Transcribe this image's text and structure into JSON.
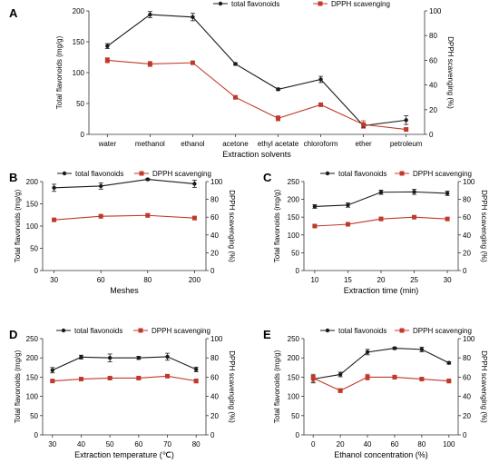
{
  "colors": {
    "flavonoids": "#1a1a1a",
    "dpph": "#c0392b"
  },
  "chart_data": [
    {
      "panel": "A",
      "type": "line",
      "xlabel": "Extraction solvents",
      "ylabel": "Total flavonoids (mg/g)",
      "y2label": "DPPH scavenging (%)",
      "categories": [
        "water",
        "methanol",
        "ethanol",
        "acetone",
        "ethyl acetate",
        "chloroform",
        "ether",
        "petroleum"
      ],
      "ylim": [
        0,
        200
      ],
      "yticks": [
        "0",
        "50",
        "100",
        "150",
        "200"
      ],
      "y2lim": [
        0,
        100
      ],
      "y2ticks": [
        "0",
        "20",
        "40",
        "60",
        "80",
        "100"
      ],
      "legend_position": "top",
      "series": [
        {
          "name": "total flavonoids",
          "axis": "left",
          "values": [
            143,
            194,
            190,
            114,
            73,
            89,
            14,
            23
          ],
          "errors": [
            4,
            5,
            6,
            2,
            2,
            5,
            3,
            7
          ]
        },
        {
          "name": "DPPH scavenging",
          "axis": "right",
          "values": [
            60,
            57,
            58,
            30,
            13,
            24,
            8,
            4
          ],
          "errors": [
            2,
            2,
            1,
            1,
            2,
            1,
            3,
            1
          ]
        }
      ]
    },
    {
      "panel": "B",
      "type": "line",
      "xlabel": "Meshes",
      "ylabel": "Total flavonoids (mg/g)",
      "y2label": "DPPH scavenging (%)",
      "categories": [
        "30",
        "60",
        "80",
        "200"
      ],
      "ylim": [
        0,
        200
      ],
      "yticks": [
        "0",
        "50",
        "100",
        "150",
        "200"
      ],
      "y2lim": [
        0,
        100
      ],
      "y2ticks": [
        "0",
        "20",
        "40",
        "60",
        "80",
        "100"
      ],
      "legend_position": "top",
      "series": [
        {
          "name": "total flavonoids",
          "axis": "left",
          "values": [
            186,
            190,
            205,
            195
          ],
          "errors": [
            8,
            7,
            2,
            8
          ]
        },
        {
          "name": "DPPH scavenging",
          "axis": "right",
          "values": [
            57,
            61,
            62,
            59
          ],
          "errors": [
            1,
            2,
            2,
            2
          ]
        }
      ]
    },
    {
      "panel": "C",
      "type": "line",
      "xlabel": "Extraction time (min)",
      "ylabel": "Total flavonoids (mg/g)",
      "y2label": "DPPH scavenging (%)",
      "categories": [
        "10",
        "15",
        "20",
        "25",
        "30"
      ],
      "ylim": [
        0,
        250
      ],
      "yticks": [
        "0",
        "50",
        "100",
        "150",
        "200",
        "250"
      ],
      "y2lim": [
        0,
        100
      ],
      "y2ticks": [
        "0",
        "20",
        "40",
        "60",
        "80",
        "100"
      ],
      "legend_position": "top",
      "series": [
        {
          "name": "total flavonoids",
          "axis": "left",
          "values": [
            180,
            184,
            220,
            221,
            217
          ],
          "errors": [
            5,
            6,
            6,
            7,
            6
          ]
        },
        {
          "name": "DPPH scavenging",
          "axis": "right",
          "values": [
            50,
            52,
            58,
            60,
            58
          ],
          "errors": [
            1,
            2,
            2,
            1,
            1
          ]
        }
      ]
    },
    {
      "panel": "D",
      "type": "line",
      "xlabel": "Extraction temperature (℃)",
      "ylabel": "Total flavonoids (mg/g)",
      "y2label": "DPPH scavenging (%)",
      "categories": [
        "30",
        "40",
        "50",
        "60",
        "70",
        "80"
      ],
      "ylim": [
        0,
        250
      ],
      "yticks": [
        "0",
        "50",
        "100",
        "150",
        "200",
        "250"
      ],
      "y2lim": [
        0,
        100
      ],
      "y2ticks": [
        "0",
        "20",
        "40",
        "60",
        "80",
        "100"
      ],
      "legend_position": "top",
      "series": [
        {
          "name": "total flavonoids",
          "axis": "left",
          "values": [
            168,
            202,
            200,
            200,
            203,
            170
          ],
          "errors": [
            7,
            5,
            10,
            4,
            9,
            6
          ]
        },
        {
          "name": "DPPH scavenging",
          "axis": "right",
          "values": [
            56,
            58,
            59,
            59,
            61,
            56
          ],
          "errors": [
            1,
            1,
            1,
            1,
            1,
            2
          ]
        }
      ]
    },
    {
      "panel": "E",
      "type": "line",
      "xlabel": "Ethanol concentration (%)",
      "ylabel": "Total flavonoids (mg/g)",
      "y2label": "DPPH scavenging (%)",
      "categories": [
        "0",
        "20",
        "40",
        "60",
        "80",
        "100"
      ],
      "ylim": [
        0,
        250
      ],
      "yticks": [
        "0",
        "50",
        "100",
        "150",
        "200",
        "250"
      ],
      "y2lim": [
        0,
        100
      ],
      "y2ticks": [
        "0",
        "20",
        "40",
        "60",
        "80",
        "100"
      ],
      "legend_position": "top",
      "series": [
        {
          "name": "total flavonoids",
          "axis": "left",
          "values": [
            145,
            157,
            215,
            225,
            222,
            187
          ],
          "errors": [
            10,
            6,
            7,
            3,
            6,
            3
          ]
        },
        {
          "name": "DPPH scavenging",
          "axis": "right",
          "values": [
            59,
            46,
            60,
            60,
            58,
            56
          ],
          "errors": [
            4,
            2,
            3,
            2,
            1,
            2
          ]
        }
      ]
    }
  ]
}
